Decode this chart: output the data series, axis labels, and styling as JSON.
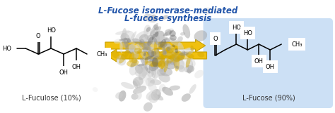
{
  "title_line1": "L-Fucose isomerase-mediated",
  "title_line2": "L-fucose synthesis",
  "title_color": "#2255AA",
  "title_fontsize": 8.5,
  "label_left": "L-Fuculose (10%)",
  "label_right": "L-Fucose (90%)",
  "label_fontsize": 7.0,
  "label_color": "#333333",
  "bg_color": "#ffffff",
  "box_color": "#cce0f5",
  "arrow_color": "#F0C010",
  "arrow_edge_color": "#C8A000",
  "figsize": [
    4.74,
    1.61
  ],
  "dpi": 100
}
